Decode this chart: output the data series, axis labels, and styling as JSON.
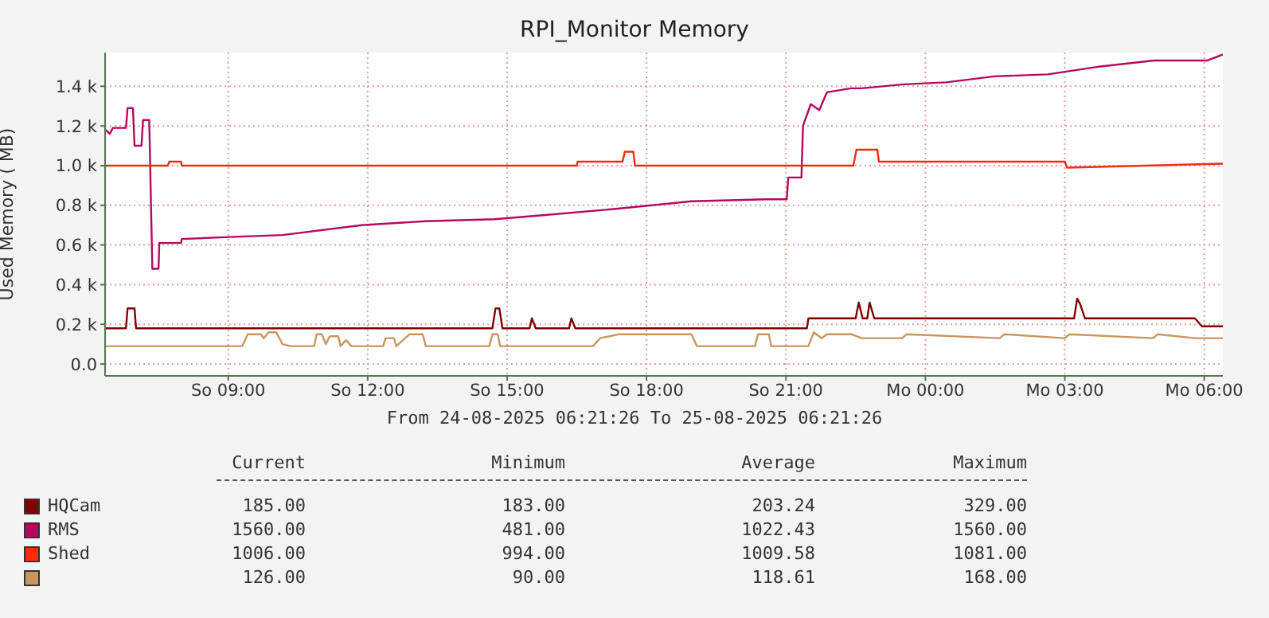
{
  "chart_data": {
    "type": "line",
    "title": "RPI_Monitor Memory",
    "ylabel": "Used Memory ( MB)",
    "xlim": [
      "2025-08-24T06:21",
      "2025-08-25T06:24"
    ],
    "xticks": [
      {
        "value": "2025-08-24T09:00",
        "label": "So 09:00"
      },
      {
        "value": "2025-08-24T12:00",
        "label": "So 12:00"
      },
      {
        "value": "2025-08-24T15:00",
        "label": "So 15:00"
      },
      {
        "value": "2025-08-24T18:00",
        "label": "So 18:00"
      },
      {
        "value": "2025-08-24T21:00",
        "label": "So 21:00"
      },
      {
        "value": "2025-08-25T00:00",
        "label": "Mo 00:00"
      },
      {
        "value": "2025-08-25T03:00",
        "label": "Mo 03:00"
      },
      {
        "value": "2025-08-25T06:00",
        "label": "Mo 06:00"
      }
    ],
    "ylim": [
      -60,
      1570
    ],
    "yticks": [
      {
        "value": 0,
        "label": "0.0"
      },
      {
        "value": 200,
        "label": "0.2 k"
      },
      {
        "value": 400,
        "label": "0.4 k"
      },
      {
        "value": 600,
        "label": "0.6 k"
      },
      {
        "value": 800,
        "label": "0.8 k"
      },
      {
        "value": 1000,
        "label": "1.0 k"
      },
      {
        "value": 1200,
        "label": "1.2 k"
      },
      {
        "value": 1400,
        "label": "1.4 k"
      }
    ],
    "grid": true,
    "legend": "bottom",
    "marker": "none",
    "annotations": [
      "From 24-08-2025 06:21:26 To 25-08-2025 06:21:26",
      "Current",
      "Minimum",
      "Average",
      "Maximum",
      "185.00",
      "183.00",
      "203.24",
      "329.00",
      "1560.00",
      "481.00",
      "1022.43",
      "1560.00",
      "1006.00",
      "994.00",
      "1009.58",
      "1081.00",
      "126.00",
      "90.00",
      "118.61",
      "168.00"
    ],
    "series": [
      {
        "name": "HQCam",
        "color": "#800000",
        "x": [
          "2025-08-24T06:22",
          "2025-08-24T06:48",
          "2025-08-24T06:50",
          "2025-08-24T06:59",
          "2025-08-24T07:01",
          "2025-08-24T14:41",
          "2025-08-24T14:45",
          "2025-08-24T14:50",
          "2025-08-24T14:54",
          "2025-08-24T15:29",
          "2025-08-24T15:32",
          "2025-08-24T15:37",
          "2025-08-24T16:20",
          "2025-08-24T16:23",
          "2025-08-24T16:28",
          "2025-08-24T21:27",
          "2025-08-24T21:29",
          "2025-08-24T22:30",
          "2025-08-24T22:34",
          "2025-08-24T22:39",
          "2025-08-24T22:45",
          "2025-08-24T22:48",
          "2025-08-24T22:54",
          "2025-08-25T03:12",
          "2025-08-25T03:16",
          "2025-08-25T03:20",
          "2025-08-25T03:26",
          "2025-08-25T05:48",
          "2025-08-25T05:57",
          "2025-08-25T06:24"
        ],
        "values": [
          180,
          180,
          280,
          280,
          180,
          180,
          280,
          280,
          180,
          180,
          230,
          180,
          180,
          230,
          180,
          180,
          230,
          230,
          310,
          230,
          230,
          310,
          230,
          230,
          330,
          300,
          230,
          230,
          190,
          190
        ]
      },
      {
        "name": "RMS",
        "color": "#b5095f",
        "x": [
          "2025-08-24T06:22",
          "2025-08-24T06:27",
          "2025-08-24T06:31",
          "2025-08-24T06:48",
          "2025-08-24T06:50",
          "2025-08-24T06:57",
          "2025-08-24T06:59",
          "2025-08-24T07:08",
          "2025-08-24T07:10",
          "2025-08-24T07:18",
          "2025-08-24T07:22",
          "2025-08-24T07:30",
          "2025-08-24T07:31",
          "2025-08-24T07:59",
          "2025-08-24T08:00",
          "2025-08-24T09:01",
          "2025-08-24T10:10",
          "2025-08-24T11:52",
          "2025-08-24T13:15",
          "2025-08-24T14:44",
          "2025-08-24T15:46",
          "2025-08-24T17:15",
          "2025-08-24T18:58",
          "2025-08-24T20:34",
          "2025-08-24T21:01",
          "2025-08-24T21:03",
          "2025-08-24T21:20",
          "2025-08-24T21:22",
          "2025-08-24T21:32",
          "2025-08-24T21:43",
          "2025-08-24T21:53",
          "2025-08-24T22:24",
          "2025-08-24T22:38",
          "2025-08-24T23:32",
          "2025-08-25T00:27",
          "2025-08-25T01:29",
          "2025-08-25T02:38",
          "2025-08-25T03:46",
          "2025-08-25T04:55",
          "2025-08-25T06:04",
          "2025-08-25T06:24"
        ],
        "values": [
          1180,
          1160,
          1190,
          1190,
          1290,
          1290,
          1100,
          1100,
          1230,
          1230,
          480,
          480,
          610,
          610,
          630,
          640,
          650,
          700,
          720,
          730,
          750,
          780,
          820,
          830,
          830,
          940,
          940,
          1200,
          1310,
          1280,
          1370,
          1390,
          1390,
          1410,
          1420,
          1450,
          1460,
          1500,
          1530,
          1530,
          1560
        ]
      },
      {
        "name": "Shed",
        "color": "#ff2a10",
        "x": [
          "2025-08-24T06:22",
          "2025-08-24T07:42",
          "2025-08-24T07:44",
          "2025-08-24T07:59",
          "2025-08-24T08:00",
          "2025-08-24T16:30",
          "2025-08-24T16:31",
          "2025-08-24T17:29",
          "2025-08-24T17:32",
          "2025-08-24T17:43",
          "2025-08-24T17:45",
          "2025-08-24T22:27",
          "2025-08-24T22:31",
          "2025-08-24T22:58",
          "2025-08-24T23:00",
          "2025-08-25T03:00",
          "2025-08-25T03:03",
          "2025-08-25T06:24"
        ],
        "values": [
          1000,
          1000,
          1020,
          1020,
          1000,
          1000,
          1020,
          1020,
          1070,
          1070,
          1000,
          1000,
          1080,
          1080,
          1020,
          1020,
          990,
          1010
        ]
      },
      {
        "color": "#c8975f",
        "x": [
          "2025-08-24T06:22",
          "2025-08-24T09:18",
          "2025-08-24T09:25",
          "2025-08-24T09:42",
          "2025-08-24T09:46",
          "2025-08-24T09:52",
          "2025-08-24T10:02",
          "2025-08-24T10:10",
          "2025-08-24T10:20",
          "2025-08-24T10:51",
          "2025-08-24T10:54",
          "2025-08-24T11:01",
          "2025-08-24T11:06",
          "2025-08-24T11:11",
          "2025-08-24T11:22",
          "2025-08-24T11:25",
          "2025-08-24T11:32",
          "2025-08-24T11:39",
          "2025-08-24T12:20",
          "2025-08-24T12:23",
          "2025-08-24T12:34",
          "2025-08-24T12:37",
          "2025-08-24T12:54",
          "2025-08-24T13:11",
          "2025-08-24T13:15",
          "2025-08-24T14:37",
          "2025-08-24T14:41",
          "2025-08-24T14:48",
          "2025-08-24T14:51",
          "2025-08-24T16:51",
          "2025-08-24T17:00",
          "2025-08-24T17:25",
          "2025-08-24T18:58",
          "2025-08-24T19:05",
          "2025-08-24T20:20",
          "2025-08-24T20:24",
          "2025-08-24T20:38",
          "2025-08-24T20:41",
          "2025-08-24T21:29",
          "2025-08-24T21:36",
          "2025-08-24T21:46",
          "2025-08-24T21:53",
          "2025-08-24T22:24",
          "2025-08-24T22:38",
          "2025-08-24T23:30",
          "2025-08-24T23:36",
          "2025-08-25T01:36",
          "2025-08-25T01:42",
          "2025-08-25T03:00",
          "2025-08-25T03:06",
          "2025-08-25T04:54",
          "2025-08-25T05:00",
          "2025-08-25T05:48",
          "2025-08-25T06:24"
        ],
        "values": [
          90,
          90,
          150,
          150,
          130,
          160,
          160,
          100,
          90,
          90,
          150,
          150,
          100,
          140,
          140,
          90,
          120,
          90,
          90,
          130,
          130,
          90,
          150,
          150,
          90,
          90,
          150,
          150,
          90,
          90,
          130,
          150,
          150,
          90,
          90,
          150,
          150,
          90,
          90,
          160,
          130,
          150,
          150,
          130,
          130,
          150,
          130,
          150,
          130,
          150,
          130,
          150,
          130,
          130
        ]
      }
    ]
  }
}
